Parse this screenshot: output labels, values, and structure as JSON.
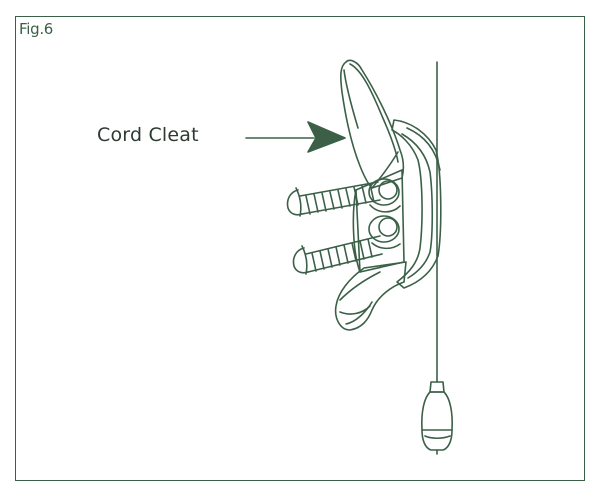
{
  "figure": {
    "label": "Fig.6"
  },
  "callout": {
    "label": "Cord Cleat"
  },
  "colors": {
    "line": "#3b6047",
    "arrow": "#3b6047",
    "text": "#2e3b33",
    "background": "#ffffff"
  },
  "icons": {
    "arrow": "right-arrow-icon",
    "cleat": "cord-cleat-icon",
    "screws": "screw-icon",
    "cord": "cord-icon",
    "acorn": "cord-weight-icon"
  }
}
